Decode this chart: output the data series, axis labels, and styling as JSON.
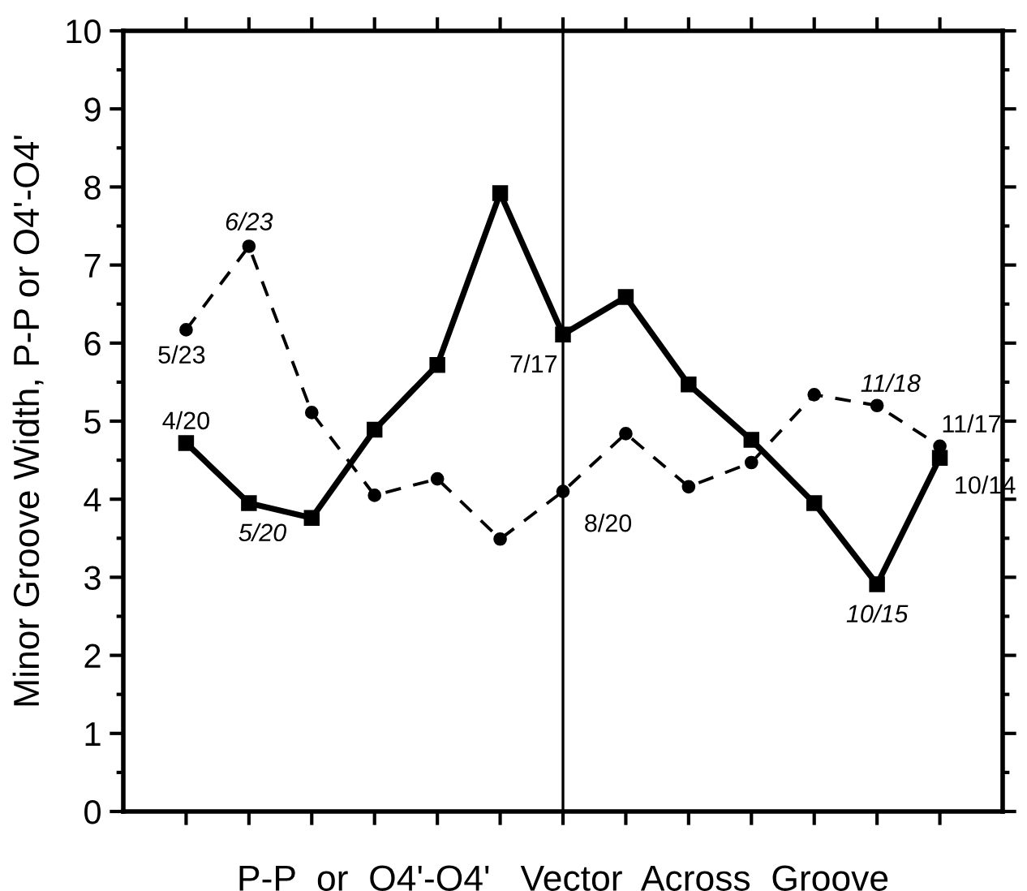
{
  "chart_data": {
    "type": "line",
    "xlabel": "P-P  or  O4'-O4'   Vector  Across  Groove",
    "ylabel": "Minor Groove Width, P-P or O4'-O4'",
    "categories": [
      null,
      null,
      null,
      null,
      null,
      null,
      null,
      null,
      null,
      null,
      null,
      null,
      null
    ],
    "ylim": [
      0,
      10
    ],
    "yticks": [
      0,
      1,
      2,
      3,
      4,
      5,
      6,
      7,
      8,
      9,
      10
    ],
    "tick_labels": "y",
    "grid": false,
    "legend": false,
    "series": [
      {
        "color": "#000000",
        "marker": "square",
        "line_style": "solid",
        "values": [
          4.72,
          3.95,
          3.76,
          4.89,
          5.72,
          7.92,
          6.11,
          6.59,
          5.47,
          4.76,
          3.95,
          2.91,
          4.53
        ]
      },
      {
        "color": "#000000",
        "marker": "circle",
        "line_style": "dashed",
        "values": [
          6.17,
          7.24,
          5.11,
          4.05,
          4.26,
          3.49,
          4.1,
          4.84,
          4.16,
          4.47,
          5.34,
          5.2,
          4.68
        ]
      }
    ],
    "annotations": [
      {
        "text": "5/23",
        "y": 6.17
      },
      {
        "text": "6/23",
        "y": 7.24
      },
      {
        "text": "4/20",
        "y": 4.72
      },
      {
        "text": "5/20",
        "y": 3.95
      },
      "7/17",
      "8/20",
      {
        "text": "11/18",
        "y": 5.2
      },
      "11/17",
      "10/14",
      {
        "text": "10/15",
        "y": 2.91
      }
    ]
  }
}
